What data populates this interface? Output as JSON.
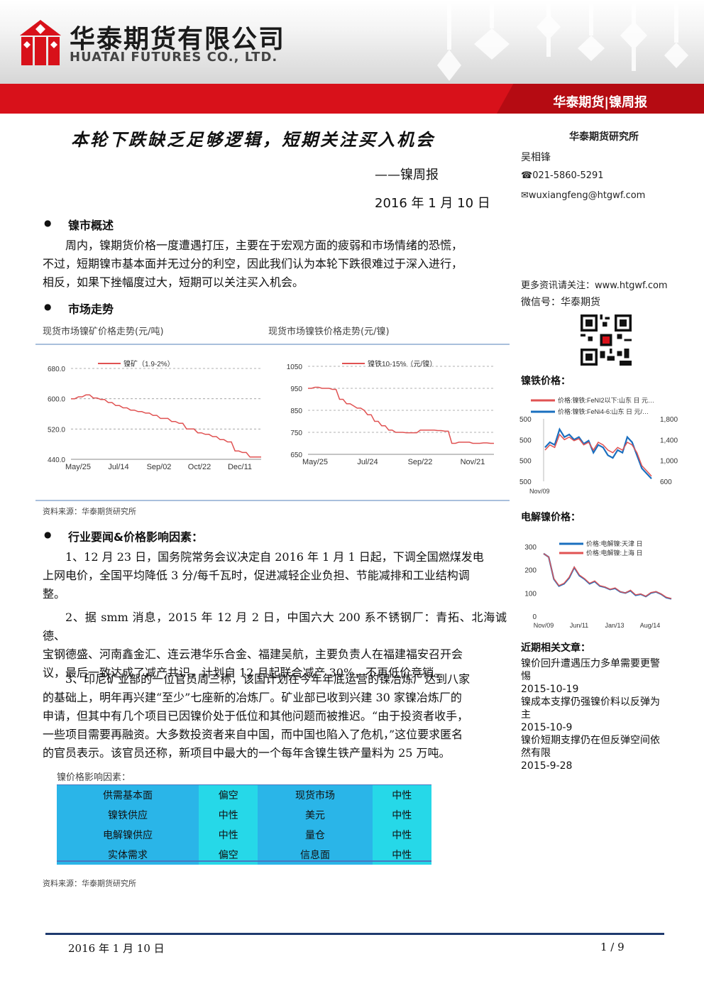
{
  "header": {
    "company_cn": "华泰期货有限公司",
    "company_en": "HUATAI FUTURES CO., LTD.",
    "tag": "华泰期货|镍周报"
  },
  "title": "本轮下跌缺乏足够逻辑，短期关注买入机会",
  "subtitle": "——镍周报",
  "date": "2016 年 1 月 10 日",
  "sidebar": {
    "institute": "华泰期货研究所",
    "author": "吴相锋",
    "phone": "☎021-5860-5291",
    "email": "✉wuxiangfeng@htgwf.com",
    "more_info": "更多资讯请关注：www.htgwf.com",
    "wechat": "微信号：华泰期货",
    "nife_heading": "镍铁价格：",
    "elec_heading": "电解镍价格：",
    "articles_heading": "近期相关文章：",
    "articles": [
      {
        "title": "镍价回升遭遇压力多单需要更警惕",
        "date": "2015-10-19"
      },
      {
        "title": "镍成本支撑仍强镍价料以反弹为主",
        "date": "2015-10-9"
      },
      {
        "title": "镍价短期支撑仍在但反弹空间依然有限",
        "date": "2015-9-28"
      }
    ]
  },
  "section1": {
    "heading": "镍市概述",
    "lines": [
      "周内，镍期货价格一度遭遇打压，主要在于宏观方面的疲弱和市场情绪的恐慌，",
      "不过，短期镍市基本面并无过分的利空，因此我们认为本轮下跌很难过于深入进行，",
      "相反，如果下挫幅度过大，短期可以关注买入机会。"
    ]
  },
  "section2": {
    "heading": "市场走势",
    "chart1_caption": "现货市场镍矿价格走势(元/吨)",
    "chart2_caption": "现货市场镍铁价格走势(元/镍)",
    "source": "资料来源：华泰期货研究所"
  },
  "section3": {
    "heading": "行业要闻&价格影响因素：",
    "p1": [
      "1、12 月 23 日，国务院常务会议决定自 2016 年 1 月 1 日起，下调全国燃煤发电",
      "上网电价，全国平均降低 3 分/每千瓦时，促进减轻企业负担、节能减排和工业结构调",
      "整。"
    ],
    "p2": [
      "2、据 smm 消息，2015 年 12 月 2 日，中国六大 200 系不锈钢厂：青拓、北海诚德、",
      "宝钢德盛、河南鑫金汇、连云港华乐合金、福建吴航，主要负责人在福建福安召开会",
      "议，最后一致达成了减产共识，计划自 12 月起联合减产 30%，不再低价竞销。"
    ],
    "p3": [
      "3、印尼矿业部的一位官员周三称，该国计划在今年年底运营的镍冶炼厂达到八家",
      "的基础上，明年再兴建“至少”七座新的冶炼厂。矿业部已收到兴建 30 家镍冶炼厂的",
      "申请，但其中有几个项目已因镍价处于低位和其他问题而被推迟。“由于投资者收手，",
      "一些项目需要再融资。大多数投资者来自中国，而中国也陷入了危机，”这位要求匿名",
      "的官员表示。该官员还称，新项目中最大的一个每年含镍生铁产量料为 25 万吨。"
    ],
    "table_caption": "镍价格影响因素：",
    "table": [
      [
        "供需基本面",
        "偏空",
        "现货市场",
        "中性"
      ],
      [
        "镍铁供应",
        "中性",
        "美元",
        "中性"
      ],
      [
        "电解镍供应",
        "中性",
        "量仓",
        "中性"
      ],
      [
        "实体需求",
        "偏空",
        "信息面",
        "中性"
      ]
    ],
    "source": "资料来源：华泰期货研究所"
  },
  "footer": {
    "date": "2016 年 1 月 10 日",
    "page": "1 / 9"
  },
  "colors": {
    "red": "#d8111a",
    "blue_table": "#2ab5e8",
    "cyan_table": "#26d8e8",
    "series_red": "#e05252",
    "series_blue": "#1a6fbf"
  },
  "chart_data": [
    {
      "type": "line",
      "legend": "镍矿（1.9-2%）",
      "x_ticks": [
        "May/25",
        "Jul/14",
        "Sep/02",
        "Oct/22",
        "Dec/11"
      ],
      "y_ticks": [
        "680.0",
        "600.0",
        "520.0",
        "440.0"
      ],
      "ylim": [
        440,
        680
      ],
      "grid": true,
      "legend_position": "top",
      "values": [
        600,
        600,
        605,
        605,
        610,
        610,
        602,
        602,
        598,
        598,
        590,
        590,
        582,
        582,
        576,
        576,
        570,
        570,
        566,
        566,
        562,
        562,
        556,
        556,
        548,
        548,
        548,
        540,
        540,
        535,
        535,
        520,
        520,
        520,
        510,
        510,
        506,
        506,
        500,
        500,
        492,
        492,
        486,
        486,
        462,
        462,
        458,
        458,
        446,
        446,
        446,
        446
      ]
    },
    {
      "type": "line",
      "legend": "镍铁10-15%（元/镍）",
      "x_ticks": [
        "May/25",
        "Jul/24",
        "Sep/22",
        "Nov/21"
      ],
      "y_ticks": [
        "1050",
        "950",
        "850",
        "750",
        "650"
      ],
      "ylim": [
        650,
        1050
      ],
      "grid": true,
      "legend_position": "top",
      "values": [
        950,
        950,
        955,
        955,
        950,
        950,
        950,
        945,
        945,
        900,
        900,
        880,
        880,
        870,
        860,
        860,
        850,
        830,
        830,
        800,
        800,
        780,
        780,
        760,
        760,
        750,
        750,
        750,
        748,
        748,
        748,
        748,
        760,
        760,
        760,
        760,
        760,
        758,
        758,
        755,
        755,
        700,
        700,
        705,
        705,
        705,
        705,
        700,
        700,
        700,
        702,
        702,
        700,
        700
      ]
    },
    {
      "type": "line",
      "series": [
        {
          "name": "价格:镍铁:FeNI2以下:山东 日 元…",
          "values": [
            1200,
            1300,
            1250,
            1500,
            1400,
            1450,
            1380,
            1420,
            1300,
            1350,
            1200,
            1350,
            1300,
            1200,
            1150,
            1250,
            1200,
            1350,
            1300,
            1150,
            900,
            800,
            700
          ]
        },
        {
          "name": "价格:镍铁:FeNi4-6:山东 日 元/…",
          "values": [
            1250,
            1350,
            1300,
            1600,
            1450,
            1500,
            1400,
            1450,
            1320,
            1380,
            1150,
            1300,
            1250,
            1100,
            1050,
            1200,
            1150,
            1450,
            1350,
            1100,
            850,
            750,
            650
          ]
        }
      ],
      "x_ticks": [
        "Nov/09"
      ],
      "y_left_ticks": [
        "500",
        "500",
        "500",
        "500"
      ],
      "y_right_ticks": [
        "1,800",
        "1,400",
        "1,000",
        "600"
      ],
      "ylim": [
        600,
        1800
      ]
    },
    {
      "type": "line",
      "series": [
        {
          "name": "价格:电解镍:天津 日",
          "values": [
            270,
            255,
            160,
            130,
            140,
            165,
            210,
            175,
            160,
            140,
            150,
            130,
            125,
            115,
            120,
            105,
            100,
            110,
            90,
            95,
            85,
            100,
            105,
            95,
            80,
            75
          ]
        },
        {
          "name": "价格:电解镍:上海 日",
          "values": [
            270,
            255,
            162,
            132,
            142,
            168,
            212,
            178,
            162,
            142,
            152,
            132,
            126,
            116,
            122,
            106,
            100,
            112,
            92,
            96,
            86,
            102,
            106,
            96,
            82,
            76
          ]
        }
      ],
      "x_ticks": [
        "Nov/09",
        "Jun/11",
        "Jan/13",
        "Aug/14"
      ],
      "y_ticks": [
        "300",
        "200",
        "100",
        "0"
      ],
      "ylim": [
        0,
        300
      ]
    }
  ]
}
